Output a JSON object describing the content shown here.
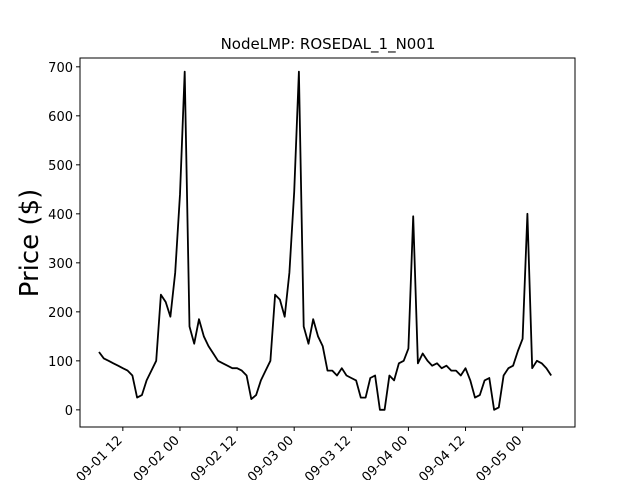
{
  "chart_data": {
    "type": "line",
    "title": "NodeLMP: ROSEDAL_1_N001",
    "y_label": "Price ($)",
    "color": "#000000",
    "x": [
      "09-01 07",
      "09-01 08",
      "09-01 09",
      "09-01 10",
      "09-01 11",
      "09-01 12",
      "09-01 13",
      "09-01 14",
      "09-01 15",
      "09-01 16",
      "09-01 17",
      "09-01 18",
      "09-01 19",
      "09-01 20",
      "09-01 21",
      "09-01 22",
      "09-01 23",
      "09-02 00",
      "09-02 01",
      "09-02 02",
      "09-02 03",
      "09-02 04",
      "09-02 05",
      "09-02 06",
      "09-02 07",
      "09-02 08",
      "09-02 09",
      "09-02 10",
      "09-02 11",
      "09-02 12",
      "09-02 13",
      "09-02 14",
      "09-02 15",
      "09-02 16",
      "09-02 17",
      "09-02 18",
      "09-02 19",
      "09-02 20",
      "09-02 21",
      "09-02 22",
      "09-02 23",
      "09-03 00",
      "09-03 01",
      "09-03 02",
      "09-03 03",
      "09-03 04",
      "09-03 05",
      "09-03 06",
      "09-03 07",
      "09-03 08",
      "09-03 09",
      "09-03 10",
      "09-03 11",
      "09-03 12",
      "09-03 13",
      "09-03 14",
      "09-03 15",
      "09-03 16",
      "09-03 17",
      "09-03 18",
      "09-03 19",
      "09-03 20",
      "09-03 21",
      "09-03 22",
      "09-03 23",
      "09-04 00",
      "09-04 01",
      "09-04 02",
      "09-04 03",
      "09-04 04",
      "09-04 05",
      "09-04 06",
      "09-04 07",
      "09-04 08",
      "09-04 09",
      "09-04 10",
      "09-04 11",
      "09-04 12",
      "09-04 13",
      "09-04 14",
      "09-04 15",
      "09-04 16",
      "09-04 17",
      "09-04 18",
      "09-04 19",
      "09-04 20",
      "09-04 21",
      "09-04 22",
      "09-04 23",
      "09-05 00",
      "09-05 01",
      "09-05 02",
      "09-05 03",
      "09-05 04",
      "09-05 05",
      "09-05 06"
    ],
    "values": [
      118,
      105,
      100,
      95,
      90,
      85,
      80,
      70,
      25,
      30,
      60,
      80,
      100,
      235,
      220,
      190,
      280,
      440,
      690,
      170,
      135,
      185,
      150,
      130,
      115,
      100,
      95,
      90,
      85,
      85,
      80,
      70,
      22,
      30,
      60,
      80,
      100,
      235,
      225,
      190,
      280,
      445,
      690,
      170,
      135,
      185,
      150,
      130,
      80,
      80,
      70,
      85,
      70,
      65,
      60,
      25,
      25,
      65,
      70,
      0,
      0,
      70,
      60,
      95,
      100,
      125,
      395,
      95,
      115,
      100,
      90,
      95,
      85,
      90,
      80,
      80,
      70,
      85,
      60,
      25,
      30,
      60,
      65,
      0,
      5,
      70,
      85,
      90,
      120,
      145,
      400,
      85,
      100,
      95,
      85,
      70
    ],
    "xlim": [
      "09-01 03",
      "09-05 11"
    ],
    "xticks": [
      "09-01 12",
      "09-02 00",
      "09-02 12",
      "09-03 00",
      "09-03 12",
      "09-04 00",
      "09-04 12",
      "09-05 00"
    ],
    "ylim": [
      -35,
      718
    ],
    "yticks": [
      0,
      100,
      200,
      300,
      400,
      500,
      600,
      700
    ]
  }
}
